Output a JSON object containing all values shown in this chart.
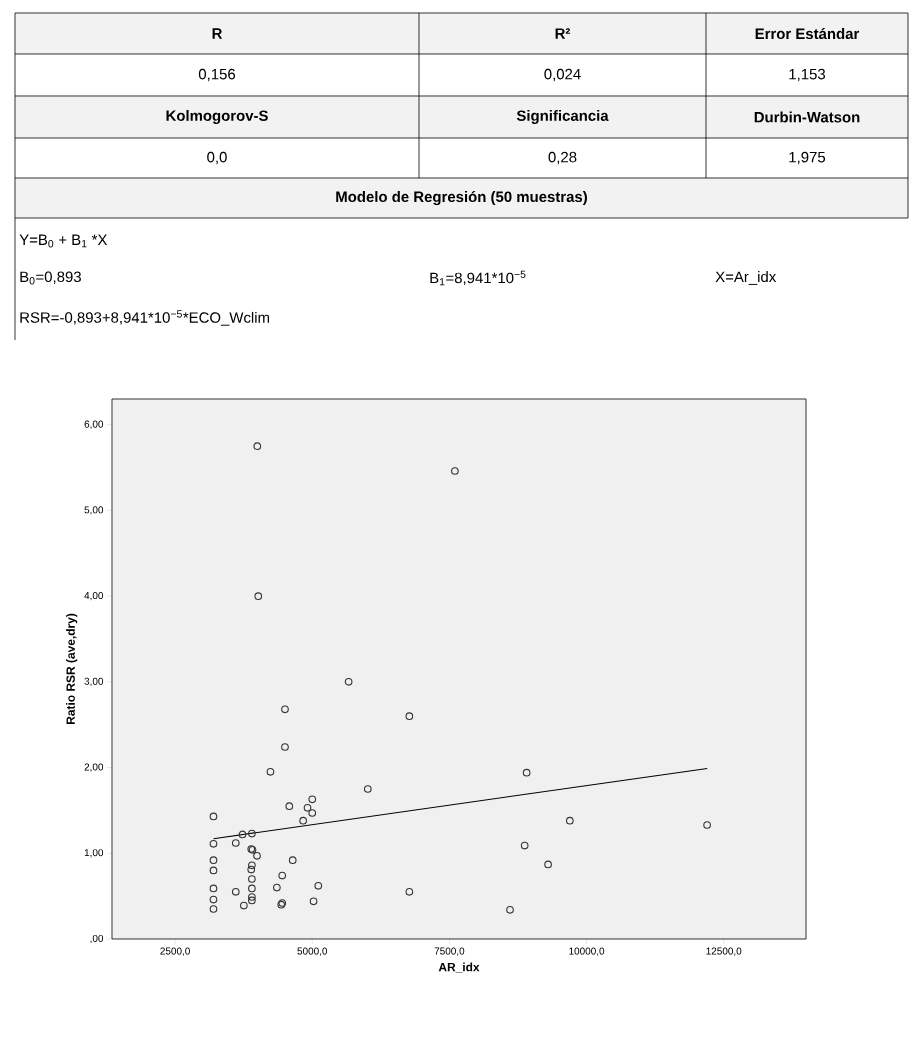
{
  "chart_data": {
    "type": "scatter",
    "xlabel": "AR_idx",
    "ylabel": "Ratio RSR (ave,dry)",
    "xlim": [
      1350,
      14000
    ],
    "ylim": [
      0,
      6.3
    ],
    "xticks": [
      {
        "value": 2500,
        "label": "2500,0"
      },
      {
        "value": 5000,
        "label": "5000,0"
      },
      {
        "value": 7500,
        "label": "7500,0"
      },
      {
        "value": 10000,
        "label": "10000,0"
      },
      {
        "value": 12500,
        "label": "12500,0"
      }
    ],
    "yticks": [
      {
        "value": 0,
        "label": ",00"
      },
      {
        "value": 1,
        "label": "1,00"
      },
      {
        "value": 2,
        "label": "2,00"
      },
      {
        "value": 3,
        "label": "3,00"
      },
      {
        "value": 4,
        "label": "4,00"
      },
      {
        "value": 5,
        "label": "5,00"
      },
      {
        "value": 6,
        "label": "6,00"
      }
    ],
    "marker": "circle",
    "series": [
      {
        "color": "#333333",
        "x": [
          5663,
          4503,
          4503,
          4238,
          6013,
          5000,
          4914,
          5000,
          4582,
          4834,
          3200,
          3200,
          3606,
          3728,
          3900,
          3888,
          3912,
          3993,
          3200,
          3200,
          4644,
          3900,
          3888,
          3900,
          4453,
          3200,
          3606,
          3900,
          4355,
          5110,
          3200,
          3200,
          3753,
          3900,
          3900,
          4435,
          4453,
          5024,
          3998,
          4016,
          7600,
          6770,
          8908,
          9695,
          12197,
          8872,
          9299,
          6770,
          8605
        ],
        "values": [
          3.0,
          2.68,
          2.24,
          1.95,
          1.75,
          1.63,
          1.53,
          1.47,
          1.55,
          1.38,
          1.43,
          1.11,
          1.12,
          1.22,
          1.23,
          1.05,
          1.04,
          0.97,
          0.92,
          0.8,
          0.92,
          0.86,
          0.81,
          0.7,
          0.74,
          0.59,
          0.55,
          0.59,
          0.6,
          0.62,
          0.46,
          0.35,
          0.39,
          0.49,
          0.45,
          0.4,
          0.42,
          0.44,
          5.75,
          4.0,
          5.46,
          2.6,
          1.94,
          1.38,
          1.33,
          1.09,
          0.87,
          0.55,
          0.34
        ]
      },
      {
        "type": "line",
        "marker": "none",
        "color": "#000000",
        "x": [
          3200,
          12200
        ],
        "values": [
          1.17,
          1.99
        ]
      }
    ],
    "annotations": [
      "R",
      "R²",
      "Error Estándar",
      "0,156",
      "0,024",
      "1,153",
      "Kolmogorov-S",
      "Significancia",
      "Durbin-Watson",
      "0,0",
      "0,28",
      "1,975",
      "Modelo de Regresión (50 muestras)",
      "Y=B$_{0}$ + B$_{1}$ *X",
      "B$_{0}$=0,893",
      "B$_{1}$=8,941*10$^{−5}$",
      "X=Ar_idx",
      "RSR=-0,893+8,941*10$^{−5}$*ECO_Wclim"
    ]
  }
}
